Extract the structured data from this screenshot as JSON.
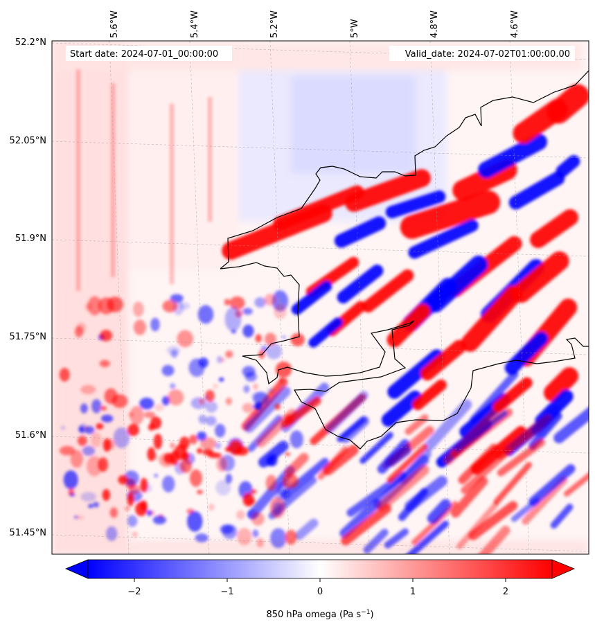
{
  "map": {
    "start_date": "Start date: 2024-07-01_00:00:00",
    "valid_date": "Valid_date: 2024-07-02T01:00:00.00",
    "lon_labels": [
      "5.6°W",
      "5.4°W",
      "5.2°W",
      "5°W",
      "4.8°W",
      "4.6°W"
    ],
    "lat_labels": [
      "52.2°N",
      "52.05°N",
      "51.9°N",
      "51.75°N",
      "51.6°N",
      "51.45°N"
    ],
    "field_colors": {
      "negative": "#0000ff",
      "zero": "#ffffff",
      "positive": "#ff0000"
    },
    "coastline_color": "#000000"
  },
  "colorbar": {
    "label_main": "850 hPa omega (Pa s",
    "label_exp": "−1",
    "label_end": ")",
    "ticks": [
      "−2",
      "−1",
      "0",
      "1",
      "2"
    ],
    "tick_values": [
      -2,
      -1,
      0,
      1,
      2
    ],
    "range": [
      -2.5,
      2.5
    ]
  }
}
